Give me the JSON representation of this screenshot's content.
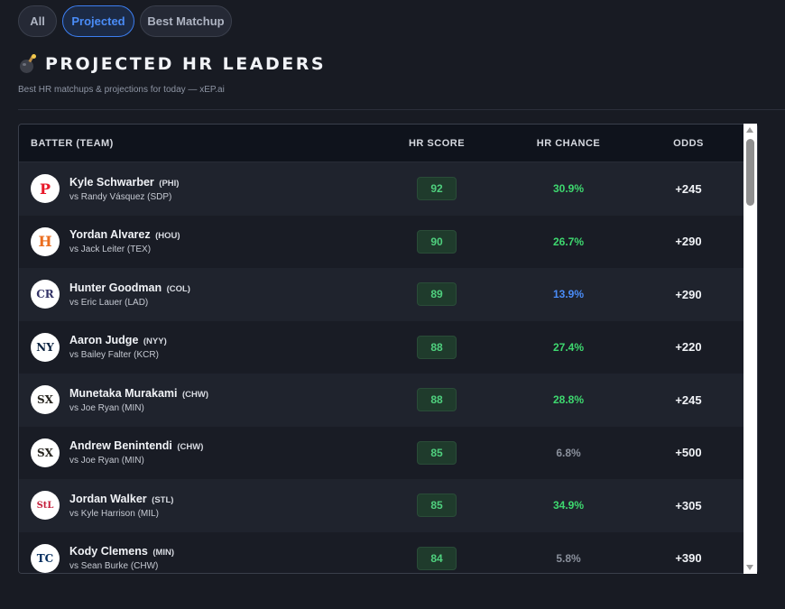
{
  "tabs": [
    {
      "label": "All",
      "active": false
    },
    {
      "label": "Projected",
      "active": true
    },
    {
      "label": "Best Matchup",
      "active": false
    }
  ],
  "header": {
    "icon": "bomb-icon",
    "title": "PROJECTED HR LEADERS",
    "subtitle": "Best HR matchups & projections for today — xEP.ai"
  },
  "table": {
    "columns": [
      "BATTER (TEAM)",
      "HR SCORE",
      "HR CHANCE",
      "ODDS"
    ],
    "rows": [
      {
        "name": "Kyle Schwarber",
        "team": "(PHI)",
        "opponent": "vs Randy Vásquez (SDP)",
        "logo": "P",
        "logo_color": "#e81828",
        "score": "92",
        "chance": "30.9%",
        "chance_color": "green",
        "odds": "+245"
      },
      {
        "name": "Yordan Alvarez",
        "team": "(HOU)",
        "opponent": "vs Jack Leiter (TEX)",
        "logo": "H",
        "logo_color": "#eb6e1f",
        "score": "90",
        "chance": "26.7%",
        "chance_color": "green",
        "odds": "+290"
      },
      {
        "name": "Hunter Goodman",
        "team": "(COL)",
        "opponent": "vs Eric Lauer (LAD)",
        "logo": "CR",
        "logo_color": "#333366",
        "score": "89",
        "chance": "13.9%",
        "chance_color": "blue",
        "odds": "+290"
      },
      {
        "name": "Aaron Judge",
        "team": "(NYY)",
        "opponent": "vs Bailey Falter (KCR)",
        "logo": "NY",
        "logo_color": "#0c2340",
        "score": "88",
        "chance": "27.4%",
        "chance_color": "green",
        "odds": "+220"
      },
      {
        "name": "Munetaka Murakami",
        "team": "(CHW)",
        "opponent": "vs Joe Ryan (MIN)",
        "logo": "SX",
        "logo_color": "#27251f",
        "score": "88",
        "chance": "28.8%",
        "chance_color": "green",
        "odds": "+245"
      },
      {
        "name": "Andrew Benintendi",
        "team": "(CHW)",
        "opponent": "vs Joe Ryan (MIN)",
        "logo": "SX",
        "logo_color": "#27251f",
        "score": "85",
        "chance": "6.8%",
        "chance_color": "gray",
        "odds": "+500"
      },
      {
        "name": "Jordan Walker",
        "team": "(STL)",
        "opponent": "vs Kyle Harrison (MIL)",
        "logo": "StL",
        "logo_color": "#c41e3a",
        "score": "85",
        "chance": "34.9%",
        "chance_color": "green",
        "odds": "+305"
      },
      {
        "name": "Kody Clemens",
        "team": "(MIN)",
        "opponent": "vs Sean Burke (CHW)",
        "logo": "TC",
        "logo_color": "#002b5c",
        "score": "84",
        "chance": "5.8%",
        "chance_color": "gray",
        "odds": "+390"
      }
    ]
  }
}
